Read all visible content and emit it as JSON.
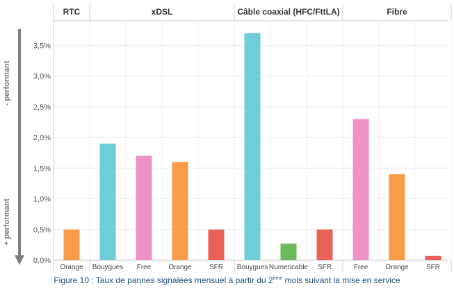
{
  "chart_data": {
    "type": "bar",
    "y_unit": "%",
    "ylim": [
      0,
      3.9
    ],
    "yticks": [
      0.0,
      0.5,
      1.0,
      1.5,
      2.0,
      2.5,
      3.0,
      3.5
    ],
    "ytick_labels": [
      "0,0%",
      "0,5%",
      "1,0%",
      "1,5%",
      "2,0%",
      "2,5%",
      "3,0%",
      "3,5%"
    ],
    "groups": [
      {
        "name": "RTC",
        "bars": [
          {
            "label": "Orange",
            "value": 0.5,
            "color": "#f89b4b"
          }
        ]
      },
      {
        "name": "xDSL",
        "bars": [
          {
            "label": "Bouygues",
            "value": 1.9,
            "color": "#6dcdd9"
          },
          {
            "label": "Free",
            "value": 1.7,
            "color": "#ee93c7"
          },
          {
            "label": "Orange",
            "value": 1.6,
            "color": "#f89b4b"
          },
          {
            "label": "SFR",
            "value": 0.5,
            "color": "#ea6158"
          }
        ]
      },
      {
        "name": "Câble coaxial (HFC/FttLA)",
        "bars": [
          {
            "label": "Bouygues",
            "value": 3.7,
            "color": "#6dcdd9"
          },
          {
            "label": "Numericable",
            "value": 0.27,
            "color": "#6ab95a"
          },
          {
            "label": "SFR",
            "value": 0.5,
            "color": "#ea6158"
          }
        ]
      },
      {
        "name": "Fibre",
        "bars": [
          {
            "label": "Free",
            "value": 2.3,
            "color": "#ee93c7"
          },
          {
            "label": "Orange",
            "value": 1.4,
            "color": "#f89b4b"
          },
          {
            "label": "SFR",
            "value": 0.07,
            "color": "#ea6158"
          }
        ]
      }
    ],
    "annotations": {
      "top": "- performant",
      "bottom": "+ performant"
    }
  },
  "caption": {
    "before": "Figure 10 : Taux de pannes signalées mensuel à partir du 2",
    "sup": "ème",
    "after": " mois suivant la mise en service"
  }
}
